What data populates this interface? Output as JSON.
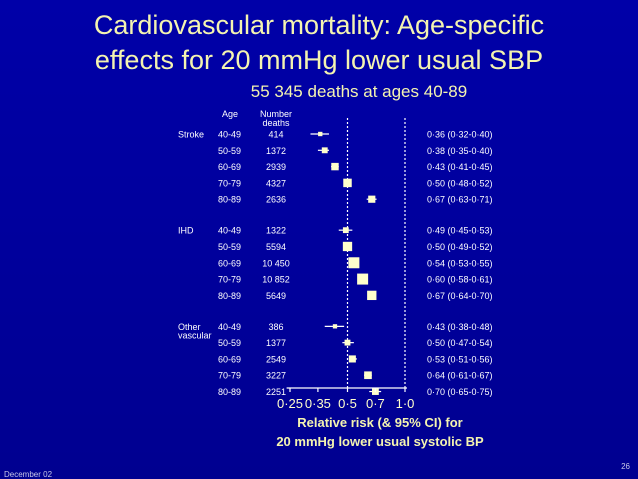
{
  "slide": {
    "title_line1": "Cardiovascular mortality: Age-specific",
    "title_line2": "effects for 20 mmHg lower usual SBP",
    "footer_date": "December 02",
    "page_number": "26"
  },
  "chart_data": {
    "type": "forest",
    "subtitle": "55 345 deaths at ages 40-89",
    "xlabel_line1": "Relative risk (& 95% CI) for",
    "xlabel_line2": "20 mmHg lower usual systolic BP",
    "column_headers": {
      "age": "Age",
      "number_line1": "Number",
      "number_line2": "deaths"
    },
    "x_axis": {
      "scale": "log",
      "range": [
        0.22,
        1.05
      ],
      "ticks": [
        0.25,
        0.35,
        0.5,
        0.7,
        1.0
      ],
      "tick_labels": [
        "0·25",
        "0·35",
        "0·5",
        "0·7",
        "1·0"
      ],
      "reference_lines": [
        0.5,
        1.0
      ]
    },
    "groups": [
      {
        "label": "Stroke",
        "rows": [
          {
            "age": "40-49",
            "deaths": "414",
            "rr": 0.36,
            "lo": 0.32,
            "hi": 0.4,
            "ci_text": "0·36 (0·32-0·40)"
          },
          {
            "age": "50-59",
            "deaths": "1372",
            "rr": 0.38,
            "lo": 0.35,
            "hi": 0.4,
            "ci_text": "0·38 (0·35-0·40)"
          },
          {
            "age": "60-69",
            "deaths": "2939",
            "rr": 0.43,
            "lo": 0.41,
            "hi": 0.45,
            "ci_text": "0·43 (0·41-0·45)"
          },
          {
            "age": "70-79",
            "deaths": "4327",
            "rr": 0.5,
            "lo": 0.48,
            "hi": 0.52,
            "ci_text": "0·50 (0·48-0·52)"
          },
          {
            "age": "80-89",
            "deaths": "2636",
            "rr": 0.67,
            "lo": 0.63,
            "hi": 0.71,
            "ci_text": "0·67 (0·63-0·71)"
          }
        ]
      },
      {
        "label": "IHD",
        "rows": [
          {
            "age": "40-49",
            "deaths": "1322",
            "rr": 0.49,
            "lo": 0.45,
            "hi": 0.53,
            "ci_text": "0·49 (0·45-0·53)"
          },
          {
            "age": "50-59",
            "deaths": "5594",
            "rr": 0.5,
            "lo": 0.49,
            "hi": 0.52,
            "ci_text": "0·50 (0·49-0·52)"
          },
          {
            "age": "60-69",
            "deaths": "10 450",
            "rr": 0.54,
            "lo": 0.53,
            "hi": 0.55,
            "ci_text": "0·54 (0·53-0·55)"
          },
          {
            "age": "70-79",
            "deaths": "10 852",
            "rr": 0.6,
            "lo": 0.58,
            "hi": 0.61,
            "ci_text": "0·60 (0·58-0·61)"
          },
          {
            "age": "80-89",
            "deaths": "5649",
            "rr": 0.67,
            "lo": 0.64,
            "hi": 0.7,
            "ci_text": "0·67 (0·64-0·70)"
          }
        ]
      },
      {
        "label": "Other vascular",
        "label_line1": "Other",
        "label_line2": "vascular",
        "rows": [
          {
            "age": "40-49",
            "deaths": "386",
            "rr": 0.43,
            "lo": 0.38,
            "hi": 0.48,
            "ci_text": "0·43 (0·38-0·48)"
          },
          {
            "age": "50-59",
            "deaths": "1377",
            "rr": 0.5,
            "lo": 0.47,
            "hi": 0.54,
            "ci_text": "0·50 (0·47-0·54)"
          },
          {
            "age": "60-69",
            "deaths": "2549",
            "rr": 0.53,
            "lo": 0.51,
            "hi": 0.56,
            "ci_text": "0·53 (0·51-0·56)"
          },
          {
            "age": "70-79",
            "deaths": "3227",
            "rr": 0.64,
            "lo": 0.61,
            "hi": 0.67,
            "ci_text": "0·64 (0·61-0·67)"
          },
          {
            "age": "80-89",
            "deaths": "2251",
            "rr": 0.7,
            "lo": 0.65,
            "hi": 0.75,
            "ci_text": "0·70 (0·65-0·75)"
          }
        ]
      }
    ],
    "colors": {
      "title": "#f4f4b0",
      "marker": "#ffffcc",
      "text": "#ffffff",
      "background": "#0000a0"
    }
  }
}
